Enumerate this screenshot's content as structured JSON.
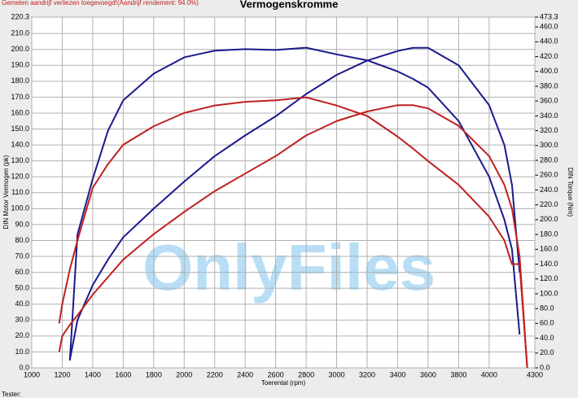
{
  "chart_data": {
    "type": "line",
    "title": "Vermogenskromme",
    "subtitle": "Gemeten aandrijf verliezen toegevoegd!(Aandrijf rendement: 94.0%)",
    "x_label": "Toerental (rpm)",
    "y_label": "DIN Motor Vermogen (pk)",
    "y2_label": "DIN Torque (Nm)",
    "footer": "Tester:",
    "watermark": "OnlyFiles",
    "grid": true,
    "xlim": [
      1000,
      4300
    ],
    "xticks": [
      1000,
      1200,
      1400,
      1600,
      1800,
      2000,
      2200,
      2400,
      2600,
      2800,
      3000,
      3200,
      3400,
      3600,
      3800,
      4000,
      4300
    ],
    "ylim": [
      0,
      220.3
    ],
    "yticks": [
      {
        "value": 220.3,
        "label": "220.3"
      },
      {
        "value": 210,
        "label": "210.0"
      },
      {
        "value": 200,
        "label": "200.0"
      },
      {
        "value": 190,
        "label": "190.0"
      },
      {
        "value": 180,
        "label": "180.0"
      },
      {
        "value": 170,
        "label": "170.0"
      },
      {
        "value": 160,
        "label": "160.0"
      },
      {
        "value": 150,
        "label": "150.0"
      },
      {
        "value": 140,
        "label": "140.0"
      },
      {
        "value": 130,
        "label": "130.0"
      },
      {
        "value": 120,
        "label": "120.0"
      },
      {
        "value": 110,
        "label": "110.0"
      },
      {
        "value": 100,
        "label": "100.0"
      },
      {
        "value": 90,
        "label": "90.0"
      },
      {
        "value": 80,
        "label": "80.0"
      },
      {
        "value": 70,
        "label": "70.0"
      },
      {
        "value": 60,
        "label": "60.0"
      },
      {
        "value": 50,
        "label": "50.0"
      },
      {
        "value": 40,
        "label": "40.0"
      },
      {
        "value": 30,
        "label": "30.0"
      },
      {
        "value": 20,
        "label": "20.0"
      },
      {
        "value": 10,
        "label": "10.0"
      },
      {
        "value": 0,
        "label": "0.0"
      }
    ],
    "y2lim": [
      0,
      473.3
    ],
    "y2ticks": [
      {
        "value": 473.3,
        "label": "473.3"
      },
      {
        "value": 460,
        "label": "460.0"
      },
      {
        "value": 440,
        "label": "440.0"
      },
      {
        "value": 420,
        "label": "420.0"
      },
      {
        "value": 400,
        "label": "400.0"
      },
      {
        "value": 380,
        "label": "380.0"
      },
      {
        "value": 360,
        "label": "360.0"
      },
      {
        "value": 340,
        "label": "340.0"
      },
      {
        "value": 320,
        "label": "320.0"
      },
      {
        "value": 300,
        "label": "300.0"
      },
      {
        "value": 280,
        "label": "280.0"
      },
      {
        "value": 260,
        "label": "260.0"
      },
      {
        "value": 240,
        "label": "240.0"
      },
      {
        "value": 220,
        "label": "220.0"
      },
      {
        "value": 200,
        "label": "200.0"
      },
      {
        "value": 180,
        "label": "180.0"
      },
      {
        "value": 160,
        "label": "160.0"
      },
      {
        "value": 140,
        "label": "140.0"
      },
      {
        "value": 120,
        "label": "120.0"
      },
      {
        "value": 100,
        "label": "100.0"
      },
      {
        "value": 80,
        "label": "80.0"
      },
      {
        "value": 60,
        "label": "60.0"
      },
      {
        "value": 40,
        "label": "40.0"
      },
      {
        "value": 20,
        "label": "20.0"
      },
      {
        "value": 0,
        "label": "0.0"
      }
    ],
    "x": [
      1180,
      1200,
      1250,
      1300,
      1400,
      1500,
      1600,
      1800,
      2000,
      2200,
      2400,
      2600,
      2800,
      3000,
      3200,
      3400,
      3500,
      3600,
      3800,
      4000,
      4100,
      4150,
      4200,
      4250
    ],
    "series": [
      {
        "color": "#1a1a8c",
        "values": [
          null,
          null,
          5,
          30,
          52,
          68,
          82,
          100,
          117,
          133,
          146,
          158,
          172,
          184,
          193,
          199,
          201,
          201,
          190,
          165,
          140,
          115,
          60,
          null
        ]
      },
      {
        "color": "#1a1a8c",
        "axis": "y2",
        "values": [
          null,
          null,
          10,
          180,
          255,
          320,
          361,
          397,
          419,
          428,
          430,
          429,
          432,
          423,
          415,
          400,
          390,
          378,
          333,
          258,
          200,
          160,
          45,
          null
        ]
      },
      {
        "color": "#c02020",
        "values": [
          10,
          20,
          27,
          33,
          46,
          57,
          68,
          84,
          98,
          111,
          122,
          133,
          146,
          155,
          161,
          165,
          165,
          163,
          152,
          133,
          115,
          100,
          70,
          0
        ]
      },
      {
        "color": "#c02020",
        "axis": "y2",
        "values": [
          60,
          86,
          133,
          172,
          243,
          275,
          301,
          326,
          344,
          354,
          359,
          361,
          365,
          354,
          340,
          312,
          296,
          279,
          247,
          204,
          172,
          140,
          140,
          0
        ]
      }
    ]
  }
}
